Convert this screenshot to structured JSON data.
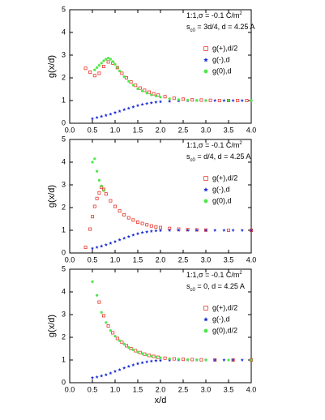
{
  "chart_data": [
    {
      "type": "scatter",
      "ylabel": "g(x/d)",
      "annotations": [
        {
          "text": "1:1,σ = -0.1 C/m",
          "sup": "2"
        },
        {
          "text": "s",
          "sub": "c0",
          "rest": " = 3d/4, d = 4.25 A"
        }
      ],
      "xlim": [
        0,
        4
      ],
      "ylim": [
        0,
        5
      ],
      "xticks": [
        {
          "value": 0,
          "label": "0.0"
        },
        {
          "value": 0.5,
          "label": "0.5"
        },
        {
          "value": 1,
          "label": "1.0"
        },
        {
          "value": 1.5,
          "label": "1.5"
        },
        {
          "value": 2,
          "label": "2.0"
        },
        {
          "value": 2.5,
          "label": "2.5"
        },
        {
          "value": 3,
          "label": "3.0"
        },
        {
          "value": 3.5,
          "label": "3.5"
        },
        {
          "value": 4,
          "label": "4.0"
        }
      ],
      "yticks": [
        0,
        1,
        2,
        3,
        4,
        5
      ],
      "legend": "upper right",
      "series": [
        {
          "name": "g(+),d/2",
          "color": "#e8392f",
          "marker": "open-square",
          "x": [
            0.35,
            0.45,
            0.55,
            0.65,
            0.75,
            0.85,
            0.95,
            1.05,
            1.15,
            1.25,
            1.35,
            1.45,
            1.55,
            1.65,
            1.75,
            1.85,
            1.95,
            2.1,
            2.3,
            2.5,
            2.7,
            2.9,
            3.1,
            3.3,
            3.5,
            3.7,
            3.9
          ],
          "values": [
            2.42,
            2.25,
            2.1,
            2.2,
            2.5,
            2.7,
            2.65,
            2.45,
            2.2,
            2.0,
            1.82,
            1.67,
            1.55,
            1.45,
            1.37,
            1.3,
            1.24,
            1.17,
            1.1,
            1.06,
            1.03,
            1.02,
            1.01,
            1.0,
            1.0,
            1.0,
            1.0
          ]
        },
        {
          "name": "g(-),d",
          "color": "#1f2fd6",
          "marker": "star",
          "x": [
            0.5,
            0.6,
            0.7,
            0.8,
            0.9,
            1.0,
            1.1,
            1.2,
            1.3,
            1.4,
            1.5,
            1.6,
            1.7,
            1.8,
            1.9,
            2.0,
            2.2,
            2.4,
            2.6,
            2.8,
            3.0,
            3.2,
            3.4,
            3.6,
            3.8,
            4.0
          ],
          "values": [
            0.2,
            0.25,
            0.3,
            0.35,
            0.4,
            0.47,
            0.53,
            0.6,
            0.66,
            0.72,
            0.78,
            0.83,
            0.87,
            0.9,
            0.93,
            0.95,
            0.97,
            0.98,
            0.99,
            1,
            1,
            1,
            1,
            1,
            1,
            1
          ]
        },
        {
          "name": "g(0),d",
          "color": "#4ee84a",
          "marker": "circle",
          "x": [
            0.55,
            0.6,
            0.65,
            0.7,
            0.75,
            0.8,
            0.85,
            0.9,
            0.95,
            1.0,
            1.05,
            1.1,
            1.2,
            1.3,
            1.4,
            1.5,
            1.6,
            1.7,
            1.8,
            1.9,
            2.0,
            2.2,
            2.4,
            2.6,
            2.8,
            3.0,
            3.5,
            4.0
          ],
          "values": [
            2.35,
            2.45,
            2.55,
            2.65,
            2.75,
            2.82,
            2.87,
            2.82,
            2.72,
            2.6,
            2.45,
            2.3,
            2.05,
            1.85,
            1.68,
            1.52,
            1.42,
            1.33,
            1.25,
            1.2,
            1.15,
            1.08,
            1.04,
            1.02,
            1.01,
            1.0,
            1.0,
            1.0
          ]
        }
      ]
    },
    {
      "type": "scatter",
      "ylabel": "g(x/d)",
      "annotations": [
        {
          "text": "1:1,σ = -0.1 C/m",
          "sup": "2"
        },
        {
          "text": "s",
          "sub": "c0",
          "rest": " = d/4, d = 4.25 A"
        }
      ],
      "xlim": [
        0,
        4
      ],
      "ylim": [
        0,
        5
      ],
      "xticks": [
        {
          "value": 0,
          "label": "0.0"
        },
        {
          "value": 0.5,
          "label": "0.5"
        },
        {
          "value": 1,
          "label": "1.0"
        },
        {
          "value": 1.5,
          "label": "1.5"
        },
        {
          "value": 2,
          "label": "2.0"
        },
        {
          "value": 2.5,
          "label": "2.5"
        },
        {
          "value": 3,
          "label": "3.0"
        },
        {
          "value": 3.5,
          "label": "3.5"
        },
        {
          "value": 4,
          "label": "4.0"
        }
      ],
      "yticks": [
        0,
        1,
        2,
        3,
        4,
        5
      ],
      "legend": "upper right",
      "series": [
        {
          "name": "g(+),d/2",
          "color": "#e8392f",
          "marker": "open-square",
          "x": [
            0.35,
            0.45,
            0.5,
            0.55,
            0.6,
            0.65,
            0.7,
            0.75,
            0.8,
            0.9,
            1.0,
            1.1,
            1.2,
            1.3,
            1.4,
            1.5,
            1.6,
            1.7,
            1.8,
            1.9,
            2.0,
            2.2,
            2.4,
            2.6,
            2.8,
            3.0,
            3.5,
            4.0
          ],
          "values": [
            0.25,
            1.05,
            1.6,
            2.05,
            2.4,
            2.65,
            2.9,
            2.8,
            2.6,
            2.3,
            2.05,
            1.85,
            1.68,
            1.55,
            1.45,
            1.36,
            1.3,
            1.24,
            1.19,
            1.15,
            1.12,
            1.08,
            1.05,
            1.03,
            1.02,
            1.01,
            1.0,
            1.0
          ]
        },
        {
          "name": "g(-),d",
          "color": "#1f2fd6",
          "marker": "star",
          "x": [
            0.5,
            0.6,
            0.7,
            0.8,
            0.9,
            1.0,
            1.1,
            1.2,
            1.3,
            1.4,
            1.5,
            1.6,
            1.7,
            1.8,
            1.9,
            2.0,
            2.2,
            2.4,
            2.6,
            2.8,
            3.0,
            3.2,
            3.4,
            3.6,
            3.8,
            4.0
          ],
          "values": [
            0.2,
            0.25,
            0.3,
            0.36,
            0.43,
            0.5,
            0.58,
            0.65,
            0.72,
            0.79,
            0.85,
            0.9,
            0.93,
            0.96,
            0.98,
            0.99,
            1,
            1,
            1,
            1,
            1,
            1,
            1,
            1,
            1,
            1
          ]
        },
        {
          "name": "g(0),d",
          "color": "#4ee84a",
          "marker": "circle",
          "x": [
            0.5,
            0.55,
            0.6,
            0.65,
            0.7,
            0.75
          ],
          "values": [
            4.0,
            4.15,
            3.6,
            3.2,
            2.95,
            2.75
          ]
        }
      ]
    },
    {
      "type": "scatter",
      "ylabel": "g(x/d)",
      "xlabel": "x/d",
      "annotations": [
        {
          "text": "1:1,σ = -0.1 C/m",
          "sup": "2"
        },
        {
          "text": "s",
          "sub": "c0",
          "rest": " = 0, d = 4.25 A"
        }
      ],
      "xlim": [
        0,
        4
      ],
      "ylim": [
        0,
        5
      ],
      "xticks": [
        {
          "value": 0,
          "label": "0.0"
        },
        {
          "value": 0.5,
          "label": "0.5"
        },
        {
          "value": 1,
          "label": "1.0"
        },
        {
          "value": 1.5,
          "label": "1.5"
        },
        {
          "value": 2,
          "label": "2.0"
        },
        {
          "value": 2.5,
          "label": "2.5"
        },
        {
          "value": 3,
          "label": "3.0"
        },
        {
          "value": 3.5,
          "label": "3.5"
        },
        {
          "value": 4,
          "label": "4.0"
        }
      ],
      "yticks": [
        0,
        1,
        2,
        3,
        4,
        5
      ],
      "legend": "upper right",
      "series": [
        {
          "name": "g(+),d/2",
          "color": "#e8392f",
          "marker": "open-square",
          "x": [
            0.65,
            0.75,
            0.85,
            0.95,
            1.05,
            1.15,
            1.25,
            1.35,
            1.45,
            1.55,
            1.65,
            1.75,
            1.85,
            1.95,
            2.1,
            2.3,
            2.5,
            2.7,
            2.9,
            3.2,
            3.6,
            4.0
          ],
          "values": [
            3.55,
            2.95,
            2.5,
            2.2,
            1.95,
            1.78,
            1.63,
            1.5,
            1.41,
            1.33,
            1.26,
            1.2,
            1.16,
            1.12,
            1.08,
            1.05,
            1.03,
            1.02,
            1.01,
            1.0,
            1.0,
            1.0
          ]
        },
        {
          "name": "g(-),d",
          "color": "#1f2fd6",
          "marker": "star",
          "x": [
            0.5,
            0.6,
            0.7,
            0.8,
            0.9,
            1.0,
            1.1,
            1.2,
            1.3,
            1.4,
            1.5,
            1.6,
            1.7,
            1.8,
            1.9,
            2.0,
            2.2,
            2.4,
            2.6,
            2.8,
            3.0,
            3.2,
            3.4,
            3.6,
            3.8,
            4.0
          ],
          "values": [
            0.22,
            0.25,
            0.3,
            0.35,
            0.42,
            0.5,
            0.57,
            0.65,
            0.72,
            0.78,
            0.84,
            0.88,
            0.92,
            0.95,
            0.97,
            0.98,
            0.99,
            1,
            1,
            1,
            1,
            1,
            1,
            1,
            1,
            1
          ]
        },
        {
          "name": "g(0),d/2",
          "color": "#4ee84a",
          "marker": "circle",
          "x": [
            0.5,
            0.6,
            0.7,
            0.8,
            0.9,
            1.0,
            1.1,
            1.2,
            1.3,
            1.4,
            1.5,
            1.6,
            1.7,
            1.8,
            1.9,
            2.0,
            2.2,
            2.4,
            2.6,
            2.8,
            3.0,
            3.5,
            4.0
          ],
          "values": [
            4.45,
            3.85,
            3.1,
            2.65,
            2.3,
            2.05,
            1.85,
            1.7,
            1.55,
            1.45,
            1.35,
            1.28,
            1.22,
            1.17,
            1.13,
            1.1,
            1.06,
            1.04,
            1.02,
            1.01,
            1.0,
            1.0,
            1.0
          ]
        }
      ]
    }
  ]
}
